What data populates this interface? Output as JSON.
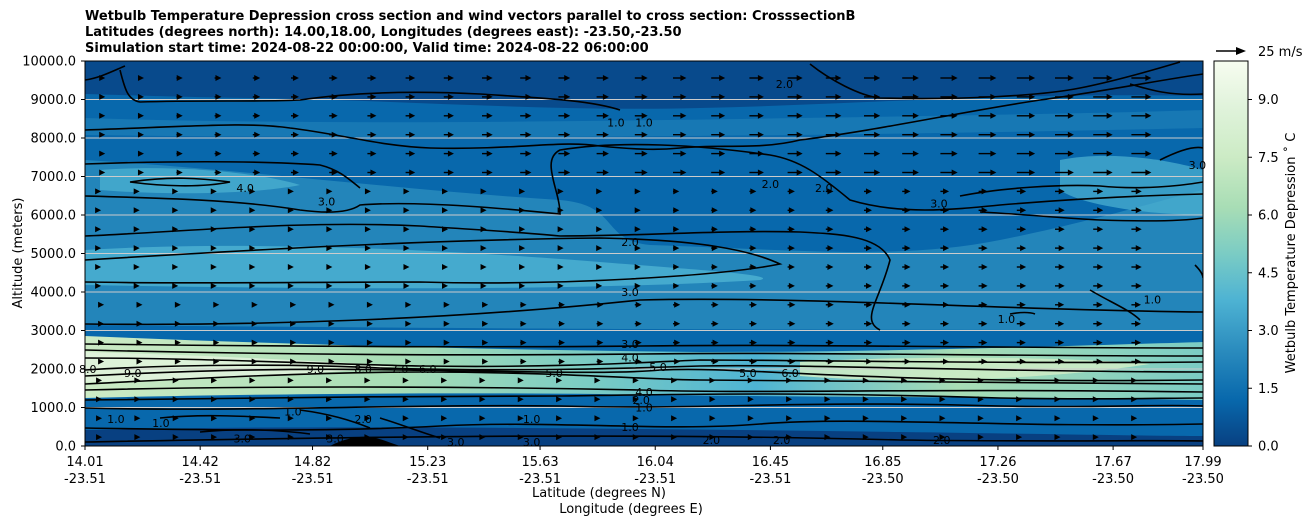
{
  "header": {
    "title_line1": "Wetbulb Temperature Depression cross section and wind vectors parallel to cross section: CrosssectionB",
    "title_line2": "Latitudes (degrees north): 14.00,18.00, Longitudes (degrees east): -23.50,-23.50",
    "title_line3": "Simulation start time: 2024-08-22 00:00:00, Valid time: 2024-08-22 06:00:00"
  },
  "chart_data": {
    "type": "heatmap",
    "ylabel": "Altitude (meters)",
    "xlabel_line1": "Latitude (degrees N)",
    "xlabel_line2": "Longitude (degrees E)",
    "ylim": [
      0,
      10000
    ],
    "y_ticks": [
      "0.0",
      "1000.0",
      "2000.0",
      "3000.0",
      "4000.0",
      "5000.0",
      "6000.0",
      "7000.0",
      "8000.0",
      "9000.0",
      "10000.0"
    ],
    "x_ticks": [
      {
        "lat": "14.01",
        "lon": "-23.51"
      },
      {
        "lat": "14.42",
        "lon": "-23.51"
      },
      {
        "lat": "14.82",
        "lon": "-23.51"
      },
      {
        "lat": "15.23",
        "lon": "-23.51"
      },
      {
        "lat": "15.63",
        "lon": "-23.51"
      },
      {
        "lat": "16.04",
        "lon": "-23.51"
      },
      {
        "lat": "16.45",
        "lon": "-23.51"
      },
      {
        "lat": "16.85",
        "lon": "-23.50"
      },
      {
        "lat": "17.26",
        "lon": "-23.50"
      },
      {
        "lat": "17.67",
        "lon": "-23.50"
      },
      {
        "lat": "17.99",
        "lon": "-23.50"
      }
    ],
    "colorbar": {
      "label": "Wetbulb Temperature Depression ˚ C",
      "ticks": [
        "0.0",
        "1.5",
        "3.0",
        "4.5",
        "6.0",
        "7.5",
        "9.0"
      ],
      "range": [
        0,
        10
      ],
      "colormap": [
        "#084081",
        "#0868ac",
        "#2b8cbe",
        "#4eb3d3",
        "#7bccc4",
        "#a8ddb5",
        "#ccebc5",
        "#e0f3db",
        "#f7fcf0"
      ]
    },
    "quiver_key": {
      "label": "25 m/s"
    },
    "contour_labels": [
      {
        "text": "1.0",
        "lat": 15.9,
        "alt": 8400
      },
      {
        "text": "1.0",
        "lat": 16.0,
        "alt": 8400
      },
      {
        "text": "2.0",
        "lat": 16.5,
        "alt": 9400
      },
      {
        "text": "2.0",
        "lat": 16.45,
        "alt": 6800
      },
      {
        "text": "2.0",
        "lat": 16.64,
        "alt": 6700
      },
      {
        "text": "3.0",
        "lat": 17.05,
        "alt": 6300
      },
      {
        "text": "3.0",
        "lat": 17.97,
        "alt": 7300
      },
      {
        "text": "4.0",
        "lat": 14.58,
        "alt": 6700
      },
      {
        "text": "3.0",
        "lat": 14.87,
        "alt": 6350
      },
      {
        "text": "2.0",
        "lat": 15.95,
        "alt": 5300
      },
      {
        "text": "3.0",
        "lat": 15.95,
        "alt": 4000
      },
      {
        "text": "1.0",
        "lat": 17.81,
        "alt": 3800
      },
      {
        "text": "1.0",
        "lat": 17.29,
        "alt": 3300
      },
      {
        "text": "3.0",
        "lat": 15.95,
        "alt": 2650
      },
      {
        "text": "4.0",
        "lat": 15.95,
        "alt": 2300
      },
      {
        "text": "5.0",
        "lat": 16.05,
        "alt": 2050
      },
      {
        "text": "5.0",
        "lat": 15.68,
        "alt": 1900
      },
      {
        "text": "5.0",
        "lat": 16.37,
        "alt": 1900
      },
      {
        "text": "6.0",
        "lat": 16.52,
        "alt": 1900
      },
      {
        "text": "6.0",
        "lat": 15.23,
        "alt": 2000
      },
      {
        "text": "7.0",
        "lat": 15.13,
        "alt": 2000
      },
      {
        "text": "8.0",
        "lat": 15.0,
        "alt": 2000
      },
      {
        "text": "9.0",
        "lat": 14.18,
        "alt": 1900
      },
      {
        "text": "9.0",
        "lat": 14.83,
        "alt": 2000
      },
      {
        "text": "8.0",
        "lat": 14.02,
        "alt": 2000
      },
      {
        "text": "4.0",
        "lat": 16.0,
        "alt": 1400
      },
      {
        "text": "2.0",
        "lat": 15.99,
        "alt": 1200
      },
      {
        "text": "1.0",
        "lat": 16.0,
        "alt": 1000
      },
      {
        "text": "1.0",
        "lat": 15.95,
        "alt": 500
      },
      {
        "text": "1.0",
        "lat": 15.6,
        "alt": 700
      },
      {
        "text": "2.0",
        "lat": 15.0,
        "alt": 700
      },
      {
        "text": "1.0",
        "lat": 14.75,
        "alt": 900
      },
      {
        "text": "1.0",
        "lat": 14.28,
        "alt": 600
      },
      {
        "text": "1.0",
        "lat": 14.12,
        "alt": 700
      },
      {
        "text": "3.0",
        "lat": 14.57,
        "alt": 200
      },
      {
        "text": "3.0",
        "lat": 14.9,
        "alt": 200
      },
      {
        "text": "3.0",
        "lat": 15.33,
        "alt": 100
      },
      {
        "text": "3.0",
        "lat": 15.6,
        "alt": 100
      },
      {
        "text": "2.0",
        "lat": 16.24,
        "alt": 150
      },
      {
        "text": "2.0",
        "lat": 16.49,
        "alt": 150
      },
      {
        "text": "2.0",
        "lat": 17.06,
        "alt": 150
      }
    ]
  }
}
